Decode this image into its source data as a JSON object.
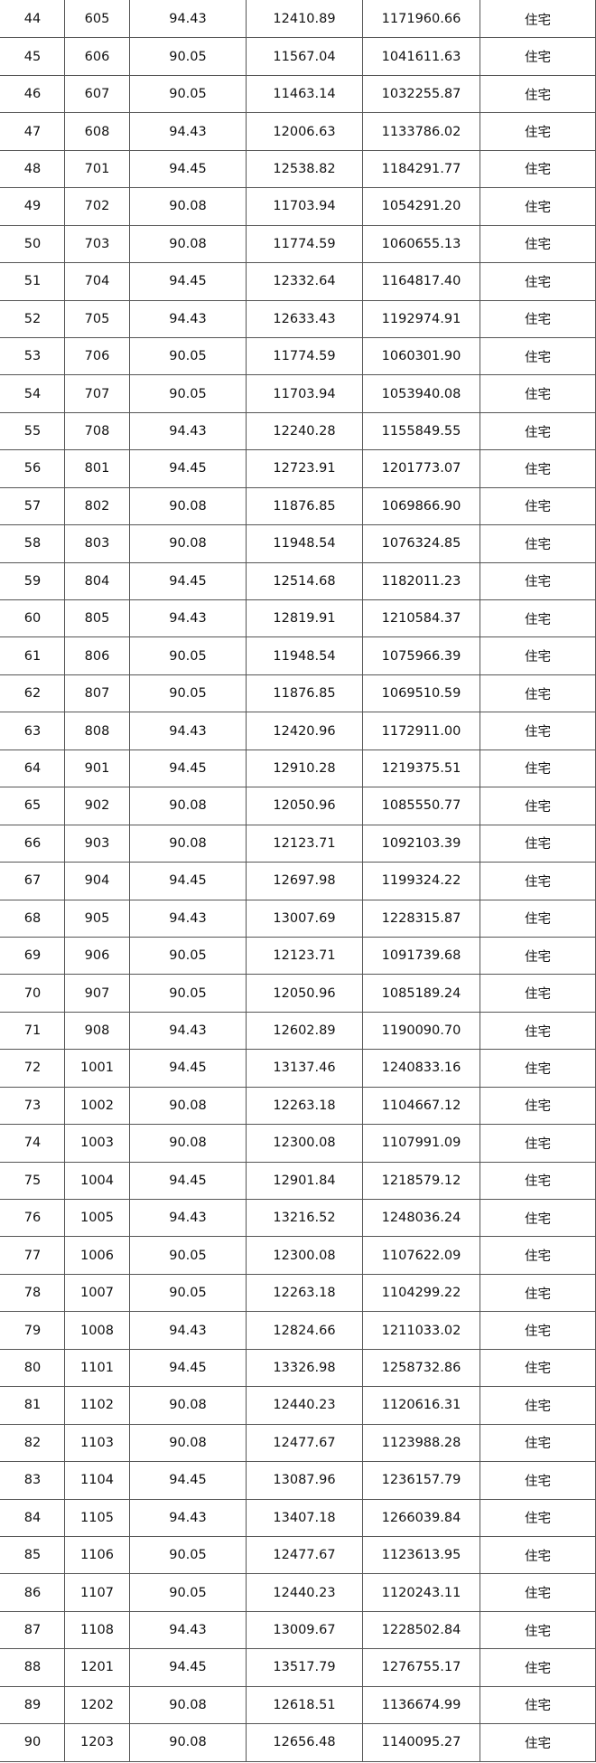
{
  "table": {
    "rows": [
      [
        "44",
        "605",
        "94.43",
        "12410.89",
        "1171960.66",
        "住宅"
      ],
      [
        "45",
        "606",
        "90.05",
        "11567.04",
        "1041611.63",
        "住宅"
      ],
      [
        "46",
        "607",
        "90.05",
        "11463.14",
        "1032255.87",
        "住宅"
      ],
      [
        "47",
        "608",
        "94.43",
        "12006.63",
        "1133786.02",
        "住宅"
      ],
      [
        "48",
        "701",
        "94.45",
        "12538.82",
        "1184291.77",
        "住宅"
      ],
      [
        "49",
        "702",
        "90.08",
        "11703.94",
        "1054291.20",
        "住宅"
      ],
      [
        "50",
        "703",
        "90.08",
        "11774.59",
        "1060655.13",
        "住宅"
      ],
      [
        "51",
        "704",
        "94.45",
        "12332.64",
        "1164817.40",
        "住宅"
      ],
      [
        "52",
        "705",
        "94.43",
        "12633.43",
        "1192974.91",
        "住宅"
      ],
      [
        "53",
        "706",
        "90.05",
        "11774.59",
        "1060301.90",
        "住宅"
      ],
      [
        "54",
        "707",
        "90.05",
        "11703.94",
        "1053940.08",
        "住宅"
      ],
      [
        "55",
        "708",
        "94.43",
        "12240.28",
        "1155849.55",
        "住宅"
      ],
      [
        "56",
        "801",
        "94.45",
        "12723.91",
        "1201773.07",
        "住宅"
      ],
      [
        "57",
        "802",
        "90.08",
        "11876.85",
        "1069866.90",
        "住宅"
      ],
      [
        "58",
        "803",
        "90.08",
        "11948.54",
        "1076324.85",
        "住宅"
      ],
      [
        "59",
        "804",
        "94.45",
        "12514.68",
        "1182011.23",
        "住宅"
      ],
      [
        "60",
        "805",
        "94.43",
        "12819.91",
        "1210584.37",
        "住宅"
      ],
      [
        "61",
        "806",
        "90.05",
        "11948.54",
        "1075966.39",
        "住宅"
      ],
      [
        "62",
        "807",
        "90.05",
        "11876.85",
        "1069510.59",
        "住宅"
      ],
      [
        "63",
        "808",
        "94.43",
        "12420.96",
        "1172911.00",
        "住宅"
      ],
      [
        "64",
        "901",
        "94.45",
        "12910.28",
        "1219375.51",
        "住宅"
      ],
      [
        "65",
        "902",
        "90.08",
        "12050.96",
        "1085550.77",
        "住宅"
      ],
      [
        "66",
        "903",
        "90.08",
        "12123.71",
        "1092103.39",
        "住宅"
      ],
      [
        "67",
        "904",
        "94.45",
        "12697.98",
        "1199324.22",
        "住宅"
      ],
      [
        "68",
        "905",
        "94.43",
        "13007.69",
        "1228315.87",
        "住宅"
      ],
      [
        "69",
        "906",
        "90.05",
        "12123.71",
        "1091739.68",
        "住宅"
      ],
      [
        "70",
        "907",
        "90.05",
        "12050.96",
        "1085189.24",
        "住宅"
      ],
      [
        "71",
        "908",
        "94.43",
        "12602.89",
        "1190090.70",
        "住宅"
      ],
      [
        "72",
        "1001",
        "94.45",
        "13137.46",
        "1240833.16",
        "住宅"
      ],
      [
        "73",
        "1002",
        "90.08",
        "12263.18",
        "1104667.12",
        "住宅"
      ],
      [
        "74",
        "1003",
        "90.08",
        "12300.08",
        "1107991.09",
        "住宅"
      ],
      [
        "75",
        "1004",
        "94.45",
        "12901.84",
        "1218579.12",
        "住宅"
      ],
      [
        "76",
        "1005",
        "94.43",
        "13216.52",
        "1248036.24",
        "住宅"
      ],
      [
        "77",
        "1006",
        "90.05",
        "12300.08",
        "1107622.09",
        "住宅"
      ],
      [
        "78",
        "1007",
        "90.05",
        "12263.18",
        "1104299.22",
        "住宅"
      ],
      [
        "79",
        "1008",
        "94.43",
        "12824.66",
        "1211033.02",
        "住宅"
      ],
      [
        "80",
        "1101",
        "94.45",
        "13326.98",
        "1258732.86",
        "住宅"
      ],
      [
        "81",
        "1102",
        "90.08",
        "12440.23",
        "1120616.31",
        "住宅"
      ],
      [
        "82",
        "1103",
        "90.08",
        "12477.67",
        "1123988.28",
        "住宅"
      ],
      [
        "83",
        "1104",
        "94.45",
        "13087.96",
        "1236157.79",
        "住宅"
      ],
      [
        "84",
        "1105",
        "94.43",
        "13407.18",
        "1266039.84",
        "住宅"
      ],
      [
        "85",
        "1106",
        "90.05",
        "12477.67",
        "1123613.95",
        "住宅"
      ],
      [
        "86",
        "1107",
        "90.05",
        "12440.23",
        "1120243.11",
        "住宅"
      ],
      [
        "87",
        "1108",
        "94.43",
        "13009.67",
        "1228502.84",
        "住宅"
      ],
      [
        "88",
        "1201",
        "94.45",
        "13517.79",
        "1276755.17",
        "住宅"
      ],
      [
        "89",
        "1202",
        "90.08",
        "12618.51",
        "1136674.99",
        "住宅"
      ],
      [
        "90",
        "1203",
        "90.08",
        "12656.48",
        "1140095.27",
        "住宅"
      ]
    ]
  }
}
